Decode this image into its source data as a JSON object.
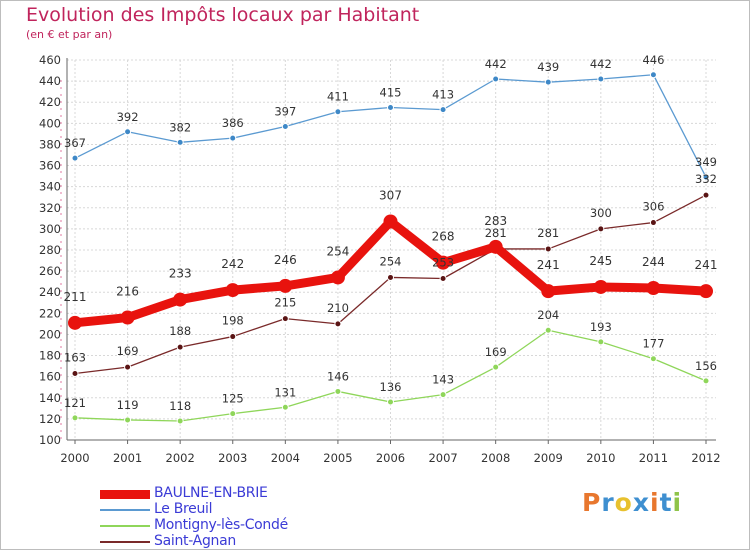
{
  "title": "Evolution des Impôts locaux par Habitant",
  "subtitle": "(en € et par an)",
  "logo": "Proxiti",
  "colors": {
    "title": "#c0245c",
    "baulne": "#e8130e",
    "breuil": "#5b9ad1",
    "montigny": "#8fd65a",
    "agnan": "#7a2a2a",
    "logo": [
      "#e8772e",
      "#3e8fd0",
      "#e8c12e",
      "#3e8fd0",
      "#e8772e",
      "#3e8fd0",
      "#8fc44a"
    ]
  },
  "chart_data": {
    "type": "line",
    "title": "Evolution des Impôts locaux par Habitant",
    "subtitle": "(en € et par an)",
    "xlabel": "",
    "ylabel": "",
    "x": [
      "2000",
      "2001",
      "2002",
      "2003",
      "2004",
      "2005",
      "2006",
      "2007",
      "2008",
      "2009",
      "2010",
      "2011",
      "2012"
    ],
    "ylim": [
      100,
      460
    ],
    "yticks": [
      100,
      120,
      140,
      160,
      180,
      200,
      220,
      240,
      260,
      280,
      300,
      320,
      340,
      360,
      380,
      400,
      420,
      440,
      460
    ],
    "grid": true,
    "legend_position": "bottom-left",
    "series": [
      {
        "name": "BAULNE-EN-BRIE",
        "key": "baulne",
        "values": [
          211,
          216,
          233,
          242,
          246,
          254,
          307,
          268,
          283,
          241,
          245,
          244,
          241
        ]
      },
      {
        "name": "Le Breuil",
        "key": "breuil",
        "values": [
          367,
          392,
          382,
          386,
          397,
          411,
          415,
          413,
          442,
          439,
          442,
          446,
          349
        ]
      },
      {
        "name": "Montigny-lès-Condé",
        "key": "montigny",
        "values": [
          121,
          119,
          118,
          125,
          131,
          146,
          136,
          143,
          169,
          204,
          193,
          177,
          156
        ]
      },
      {
        "name": "Saint-Agnan",
        "key": "agnan",
        "values": [
          163,
          169,
          188,
          198,
          215,
          210,
          254,
          253,
          281,
          281,
          300,
          306,
          332
        ]
      }
    ]
  }
}
